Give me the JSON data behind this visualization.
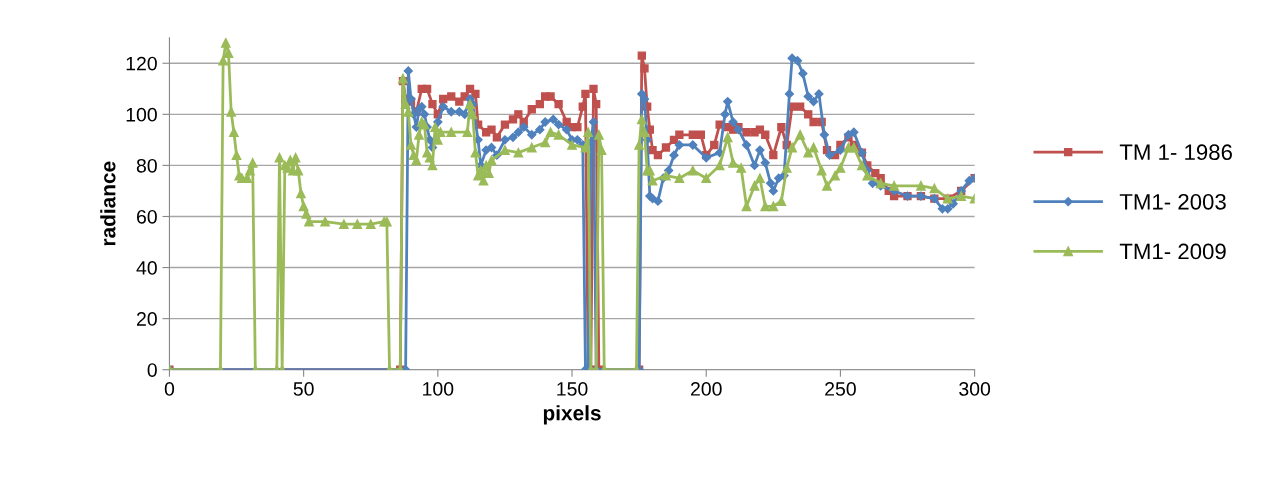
{
  "chart_data": {
    "type": "line",
    "xlabel": "pixels",
    "ylabel": "radiance",
    "xlim": [
      0,
      300
    ],
    "xticks": [
      0,
      50,
      100,
      150,
      200,
      250,
      300
    ],
    "ylim": [
      0,
      130
    ],
    "yticks": [
      0,
      20,
      40,
      60,
      80,
      100,
      120
    ],
    "grid": "y",
    "legend": "right",
    "line_style": "solid",
    "series": [
      {
        "name": "TM 1- 1986",
        "color": "#c0504d",
        "marker": "square",
        "x": [
          0,
          86,
          87,
          88,
          90,
          92,
          94,
          96,
          98,
          100,
          102,
          105,
          108,
          110,
          112,
          114,
          115,
          118,
          120,
          122,
          125,
          128,
          130,
          132,
          135,
          138,
          140,
          142,
          145,
          148,
          150,
          152,
          154,
          155,
          156,
          157,
          158,
          159,
          160,
          175,
          176,
          177,
          178,
          179,
          180,
          182,
          185,
          188,
          190,
          195,
          198,
          200,
          203,
          205,
          208,
          210,
          212,
          215,
          218,
          220,
          222,
          225,
          228,
          230,
          232,
          235,
          238,
          240,
          243,
          245,
          248,
          250,
          253,
          255,
          258,
          260,
          263,
          265,
          268,
          270,
          275,
          280,
          285,
          290,
          295,
          300
        ],
        "values": [
          0,
          0,
          113,
          106,
          105,
          101,
          110,
          110,
          104,
          100,
          106,
          107,
          105,
          107,
          110,
          108,
          96,
          93,
          94,
          91,
          96,
          98,
          100,
          97,
          102,
          104,
          107,
          107,
          104,
          97,
          95,
          95,
          103,
          108,
          0,
          0,
          110,
          104,
          0,
          0,
          123,
          118,
          103,
          94,
          86,
          84,
          87,
          90,
          92,
          92,
          92,
          84,
          88,
          96,
          95,
          94,
          95,
          93,
          93,
          94,
          92,
          84,
          95,
          88,
          103,
          103,
          100,
          97,
          97,
          86,
          84,
          88,
          91,
          88,
          85,
          80,
          77,
          75,
          70,
          68,
          68,
          68,
          67,
          67,
          70,
          75
        ]
      },
      {
        "name": "TM1- 2003",
        "color": "#4f81bd",
        "marker": "diamond",
        "x": [
          0,
          88,
          89,
          90,
          91,
          92,
          93,
          94,
          95,
          96,
          97,
          98,
          100,
          102,
          105,
          108,
          110,
          112,
          113,
          115,
          116,
          118,
          120,
          122,
          125,
          128,
          130,
          132,
          135,
          138,
          140,
          143,
          145,
          148,
          150,
          152,
          154,
          155,
          156,
          157,
          158,
          159,
          175,
          176,
          177,
          178,
          179,
          180,
          182,
          184,
          186,
          188,
          190,
          195,
          200,
          205,
          207,
          208,
          210,
          212,
          215,
          218,
          220,
          222,
          224,
          225,
          227,
          229,
          231,
          232,
          234,
          236,
          238,
          240,
          242,
          244,
          246,
          250,
          253,
          255,
          258,
          260,
          262,
          265,
          270,
          275,
          280,
          285,
          288,
          290,
          292,
          295,
          298,
          300
        ],
        "values": [
          0,
          0,
          117,
          106,
          100,
          95,
          102,
          103,
          100,
          95,
          90,
          87,
          97,
          103,
          101,
          101,
          100,
          106,
          104,
          90,
          80,
          86,
          87,
          84,
          90,
          91,
          93,
          95,
          92,
          94,
          97,
          98,
          96,
          94,
          90,
          90,
          88,
          0,
          0,
          89,
          97,
          0,
          0,
          108,
          106,
          90,
          68,
          67,
          66,
          75,
          78,
          84,
          88,
          88,
          83,
          85,
          100,
          105,
          97,
          94,
          88,
          80,
          86,
          81,
          73,
          70,
          75,
          76,
          108,
          122,
          121,
          116,
          107,
          105,
          108,
          92,
          84,
          86,
          92,
          93,
          85,
          78,
          73,
          72,
          70,
          68,
          68,
          67,
          63,
          63,
          65,
          70,
          74,
          75
        ]
      },
      {
        "name": "TM1- 2009",
        "color": "#9bbb59",
        "marker": "triangle",
        "x": [
          0,
          19,
          20,
          21,
          22,
          23,
          24,
          25,
          26,
          27,
          29,
          30,
          31,
          32,
          40,
          41,
          42,
          43,
          44,
          45,
          46,
          47,
          48,
          49,
          50,
          51,
          52,
          58,
          65,
          70,
          75,
          80,
          81,
          82,
          86,
          87,
          88,
          89,
          90,
          91,
          92,
          93,
          94,
          95,
          96,
          97,
          98,
          99,
          100,
          101,
          105,
          111,
          112,
          113,
          114,
          115,
          116,
          117,
          118,
          119,
          120,
          125,
          130,
          135,
          140,
          142,
          145,
          150,
          155,
          156,
          157,
          159,
          160,
          161,
          162,
          174,
          175,
          176,
          177,
          178,
          179,
          180,
          185,
          190,
          195,
          200,
          205,
          208,
          210,
          213,
          215,
          218,
          220,
          222,
          225,
          228,
          230,
          232,
          235,
          238,
          240,
          243,
          245,
          248,
          250,
          253,
          255,
          258,
          260,
          265,
          270,
          280,
          285,
          290,
          295,
          300
        ],
        "values": [
          0,
          0,
          121,
          128,
          124,
          101,
          93,
          84,
          76,
          75,
          75,
          78,
          81,
          0,
          0,
          83,
          0,
          80,
          79,
          82,
          78,
          83,
          78,
          69,
          64,
          61,
          58,
          58,
          57,
          57,
          57,
          58,
          58,
          0,
          0,
          114,
          104,
          101,
          88,
          84,
          82,
          92,
          97,
          96,
          85,
          83,
          80,
          95,
          90,
          93,
          93,
          93,
          104,
          100,
          85,
          76,
          78,
          74,
          80,
          77,
          82,
          86,
          85,
          87,
          89,
          93,
          92,
          88,
          87,
          93,
          0,
          0,
          92,
          86,
          0,
          0,
          88,
          98,
          93,
          78,
          78,
          74,
          76,
          75,
          78,
          75,
          80,
          91,
          81,
          79,
          64,
          72,
          75,
          64,
          64,
          66,
          79,
          87,
          92,
          85,
          87,
          78,
          72,
          76,
          79,
          87,
          87,
          80,
          76,
          73,
          72,
          72,
          71,
          67,
          68,
          67
        ]
      }
    ]
  }
}
